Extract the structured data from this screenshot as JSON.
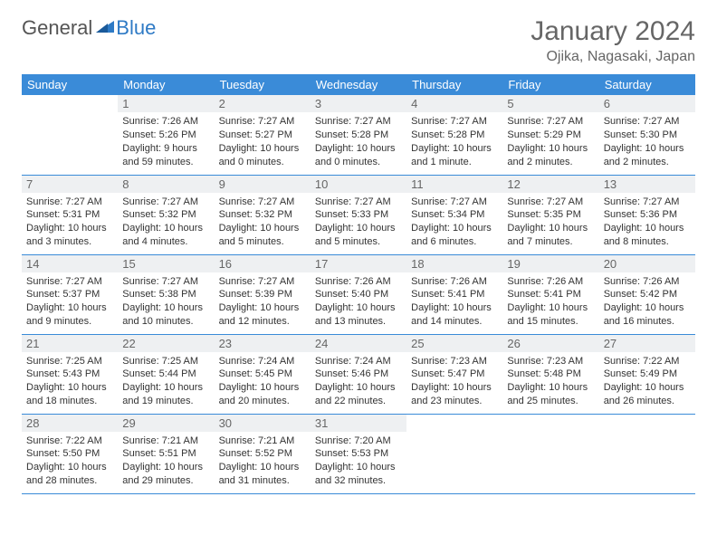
{
  "brand": {
    "general": "General",
    "blue": "Blue"
  },
  "header": {
    "month_title": "January 2024",
    "location": "Ojika, Nagasaki, Japan"
  },
  "colors": {
    "header_bg": "#3a8bd8",
    "header_text": "#ffffff",
    "daynum_bg": "#eef0f2",
    "row_border": "#3a8bd8",
    "brand_blue": "#2e7ac5",
    "page_bg": "#ffffff",
    "body_text": "#333333",
    "muted_text": "#666666"
  },
  "weekdays": [
    "Sunday",
    "Monday",
    "Tuesday",
    "Wednesday",
    "Thursday",
    "Friday",
    "Saturday"
  ],
  "weeks": [
    [
      null,
      {
        "n": "1",
        "sunrise": "7:26 AM",
        "sunset": "5:26 PM",
        "daylight": "9 hours and 59 minutes."
      },
      {
        "n": "2",
        "sunrise": "7:27 AM",
        "sunset": "5:27 PM",
        "daylight": "10 hours and 0 minutes."
      },
      {
        "n": "3",
        "sunrise": "7:27 AM",
        "sunset": "5:28 PM",
        "daylight": "10 hours and 0 minutes."
      },
      {
        "n": "4",
        "sunrise": "7:27 AM",
        "sunset": "5:28 PM",
        "daylight": "10 hours and 1 minute."
      },
      {
        "n": "5",
        "sunrise": "7:27 AM",
        "sunset": "5:29 PM",
        "daylight": "10 hours and 2 minutes."
      },
      {
        "n": "6",
        "sunrise": "7:27 AM",
        "sunset": "5:30 PM",
        "daylight": "10 hours and 2 minutes."
      }
    ],
    [
      {
        "n": "7",
        "sunrise": "7:27 AM",
        "sunset": "5:31 PM",
        "daylight": "10 hours and 3 minutes."
      },
      {
        "n": "8",
        "sunrise": "7:27 AM",
        "sunset": "5:32 PM",
        "daylight": "10 hours and 4 minutes."
      },
      {
        "n": "9",
        "sunrise": "7:27 AM",
        "sunset": "5:32 PM",
        "daylight": "10 hours and 5 minutes."
      },
      {
        "n": "10",
        "sunrise": "7:27 AM",
        "sunset": "5:33 PM",
        "daylight": "10 hours and 5 minutes."
      },
      {
        "n": "11",
        "sunrise": "7:27 AM",
        "sunset": "5:34 PM",
        "daylight": "10 hours and 6 minutes."
      },
      {
        "n": "12",
        "sunrise": "7:27 AM",
        "sunset": "5:35 PM",
        "daylight": "10 hours and 7 minutes."
      },
      {
        "n": "13",
        "sunrise": "7:27 AM",
        "sunset": "5:36 PM",
        "daylight": "10 hours and 8 minutes."
      }
    ],
    [
      {
        "n": "14",
        "sunrise": "7:27 AM",
        "sunset": "5:37 PM",
        "daylight": "10 hours and 9 minutes."
      },
      {
        "n": "15",
        "sunrise": "7:27 AM",
        "sunset": "5:38 PM",
        "daylight": "10 hours and 10 minutes."
      },
      {
        "n": "16",
        "sunrise": "7:27 AM",
        "sunset": "5:39 PM",
        "daylight": "10 hours and 12 minutes."
      },
      {
        "n": "17",
        "sunrise": "7:26 AM",
        "sunset": "5:40 PM",
        "daylight": "10 hours and 13 minutes."
      },
      {
        "n": "18",
        "sunrise": "7:26 AM",
        "sunset": "5:41 PM",
        "daylight": "10 hours and 14 minutes."
      },
      {
        "n": "19",
        "sunrise": "7:26 AM",
        "sunset": "5:41 PM",
        "daylight": "10 hours and 15 minutes."
      },
      {
        "n": "20",
        "sunrise": "7:26 AM",
        "sunset": "5:42 PM",
        "daylight": "10 hours and 16 minutes."
      }
    ],
    [
      {
        "n": "21",
        "sunrise": "7:25 AM",
        "sunset": "5:43 PM",
        "daylight": "10 hours and 18 minutes."
      },
      {
        "n": "22",
        "sunrise": "7:25 AM",
        "sunset": "5:44 PM",
        "daylight": "10 hours and 19 minutes."
      },
      {
        "n": "23",
        "sunrise": "7:24 AM",
        "sunset": "5:45 PM",
        "daylight": "10 hours and 20 minutes."
      },
      {
        "n": "24",
        "sunrise": "7:24 AM",
        "sunset": "5:46 PM",
        "daylight": "10 hours and 22 minutes."
      },
      {
        "n": "25",
        "sunrise": "7:23 AM",
        "sunset": "5:47 PM",
        "daylight": "10 hours and 23 minutes."
      },
      {
        "n": "26",
        "sunrise": "7:23 AM",
        "sunset": "5:48 PM",
        "daylight": "10 hours and 25 minutes."
      },
      {
        "n": "27",
        "sunrise": "7:22 AM",
        "sunset": "5:49 PM",
        "daylight": "10 hours and 26 minutes."
      }
    ],
    [
      {
        "n": "28",
        "sunrise": "7:22 AM",
        "sunset": "5:50 PM",
        "daylight": "10 hours and 28 minutes."
      },
      {
        "n": "29",
        "sunrise": "7:21 AM",
        "sunset": "5:51 PM",
        "daylight": "10 hours and 29 minutes."
      },
      {
        "n": "30",
        "sunrise": "7:21 AM",
        "sunset": "5:52 PM",
        "daylight": "10 hours and 31 minutes."
      },
      {
        "n": "31",
        "sunrise": "7:20 AM",
        "sunset": "5:53 PM",
        "daylight": "10 hours and 32 minutes."
      },
      null,
      null,
      null
    ]
  ],
  "labels": {
    "sunrise": "Sunrise:",
    "sunset": "Sunset:",
    "daylight": "Daylight:"
  }
}
